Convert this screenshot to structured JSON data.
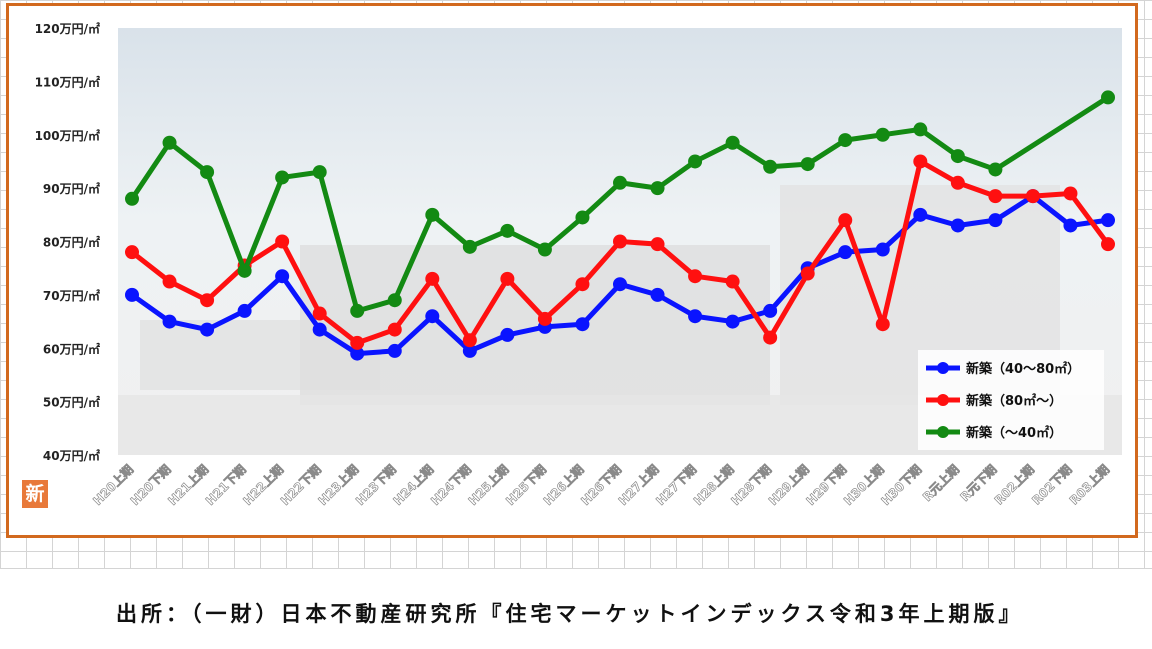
{
  "badge": "新",
  "source": "出所：（一財）日本不動産研究所『住宅マーケットインデックス令和3年上期版』",
  "chart_data": {
    "type": "line",
    "title": "",
    "xlabel": "",
    "ylabel": "",
    "y_unit_suffix": "万円/㎡",
    "ylim": [
      40,
      120
    ],
    "y_ticks": [
      40,
      50,
      60,
      70,
      80,
      90,
      100,
      110,
      120
    ],
    "legend_position": "bottom-right",
    "grid": false,
    "categories": [
      "H20上期",
      "H20下期",
      "H21上期",
      "H21下期",
      "H22上期",
      "H22下期",
      "H23上期",
      "H23下期",
      "H24上期",
      "H24下期",
      "H25上期",
      "H25下期",
      "H26上期",
      "H26下期",
      "H27上期",
      "H27下期",
      "H28上期",
      "H28下期",
      "H29上期",
      "H29下期",
      "H30上期",
      "H30下期",
      "R元上期",
      "R元下期",
      "R02上期",
      "R02下期",
      "R03上期"
    ],
    "series": [
      {
        "name": "新築（40～80㎡）",
        "color": "#0a14ff",
        "values": [
          70,
          65,
          63.5,
          67,
          73.5,
          63.5,
          59,
          59.5,
          66,
          59.5,
          62.5,
          64,
          64.5,
          72,
          70,
          66,
          65,
          67,
          75,
          78,
          78.5,
          85,
          83,
          84,
          88.5,
          83,
          84
        ]
      },
      {
        "name": "新築（80㎡～）",
        "color": "#ff1010",
        "values": [
          78,
          72.5,
          69,
          75.5,
          80,
          66.5,
          61,
          63.5,
          73,
          61.5,
          73,
          65.5,
          72,
          80,
          79.5,
          73.5,
          72.5,
          62,
          74,
          84,
          64.5,
          95,
          91,
          88.5,
          88.5,
          89,
          79.5
        ]
      },
      {
        "name": "新築（～40㎡）",
        "color": "#138a13",
        "values": [
          88,
          98.5,
          93,
          74.5,
          92,
          93,
          67,
          69,
          85,
          79,
          82,
          78.5,
          84.5,
          91,
          90,
          95,
          98.5,
          94,
          94.5,
          99,
          100,
          101,
          96,
          93.5,
          null,
          null,
          107
        ]
      }
    ]
  }
}
